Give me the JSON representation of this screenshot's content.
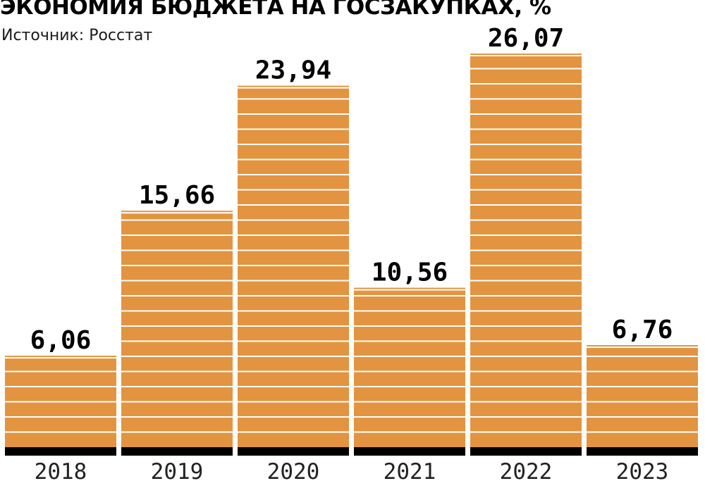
{
  "chart_data": {
    "type": "bar",
    "title": "ЭКОНОМИЯ БЮДЖЕТА НА ГОСЗАКУПКАХ, %",
    "subtitle": "Источник: Росстат",
    "categories": [
      "2018",
      "2019",
      "2020",
      "2021",
      "2022",
      "2023"
    ],
    "values": [
      6.06,
      15.66,
      23.94,
      10.56,
      26.07,
      6.76
    ],
    "value_labels": [
      "6,06",
      "15,66",
      "23,94",
      "10,56",
      "26,07",
      "6,76"
    ],
    "xlabel": "",
    "ylabel": "",
    "ylim": [
      0,
      26.07
    ],
    "grid": false,
    "legend": "none",
    "colors": {
      "bar": "#e39440",
      "base": "#000000",
      "stripe": "#ffffff"
    }
  }
}
